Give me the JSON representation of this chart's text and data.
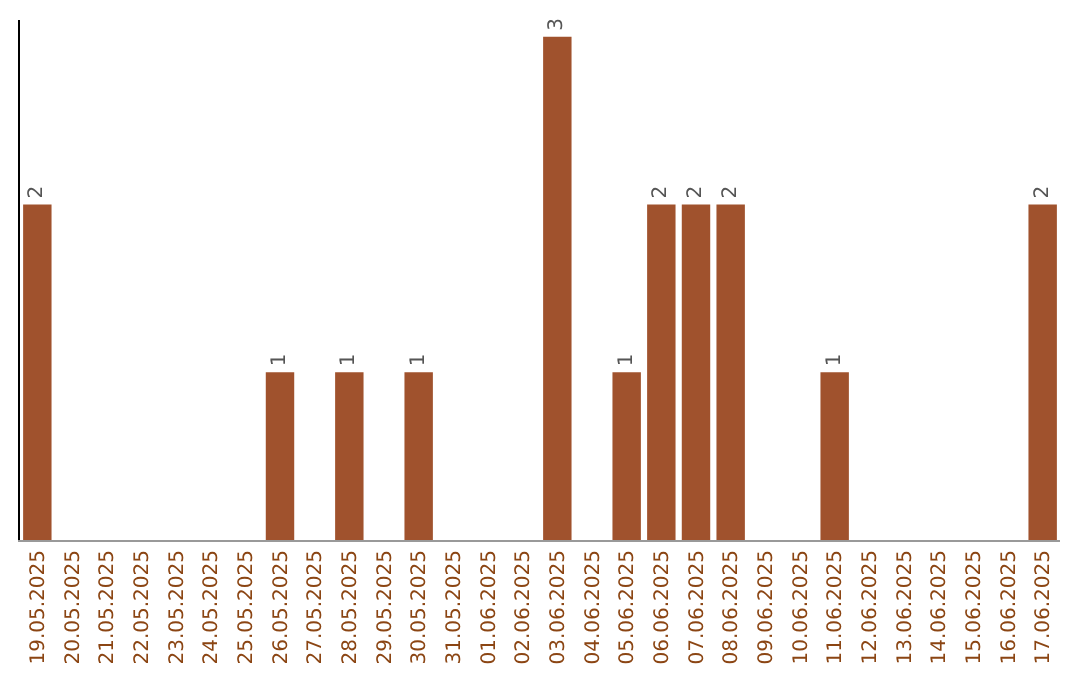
{
  "chart_data": {
    "type": "bar",
    "categories": [
      "19.05.2025",
      "20.05.2025",
      "21.05.2025",
      "22.05.2025",
      "23.05.2025",
      "24.05.2025",
      "25.05.2025",
      "26.05.2025",
      "27.05.2025",
      "28.05.2025",
      "29.05.2025",
      "30.05.2025",
      "31.05.2025",
      "01.06.2025",
      "02.06.2025",
      "03.06.2025",
      "04.06.2025",
      "05.06.2025",
      "06.06.2025",
      "07.06.2025",
      "08.06.2025",
      "09.06.2025",
      "10.06.2025",
      "11.06.2025",
      "12.06.2025",
      "13.06.2025",
      "14.06.2025",
      "15.06.2025",
      "16.06.2025",
      "17.06.2025"
    ],
    "values": [
      2,
      0,
      0,
      0,
      0,
      0,
      0,
      1,
      0,
      1,
      0,
      1,
      0,
      0,
      0,
      3,
      0,
      1,
      2,
      2,
      2,
      0,
      0,
      1,
      0,
      0,
      0,
      0,
      0,
      2
    ],
    "value_labels": [
      "2",
      null,
      null,
      null,
      null,
      null,
      null,
      "1",
      null,
      "1",
      null,
      "1",
      null,
      null,
      null,
      "3",
      null,
      "1",
      "2",
      "2",
      "2",
      null,
      null,
      "1",
      null,
      null,
      null,
      null,
      null,
      "2"
    ],
    "color": "#a0522d",
    "ylim": [
      0,
      3.1
    ],
    "tick_labels": "x",
    "grid": false,
    "legend": false
  }
}
